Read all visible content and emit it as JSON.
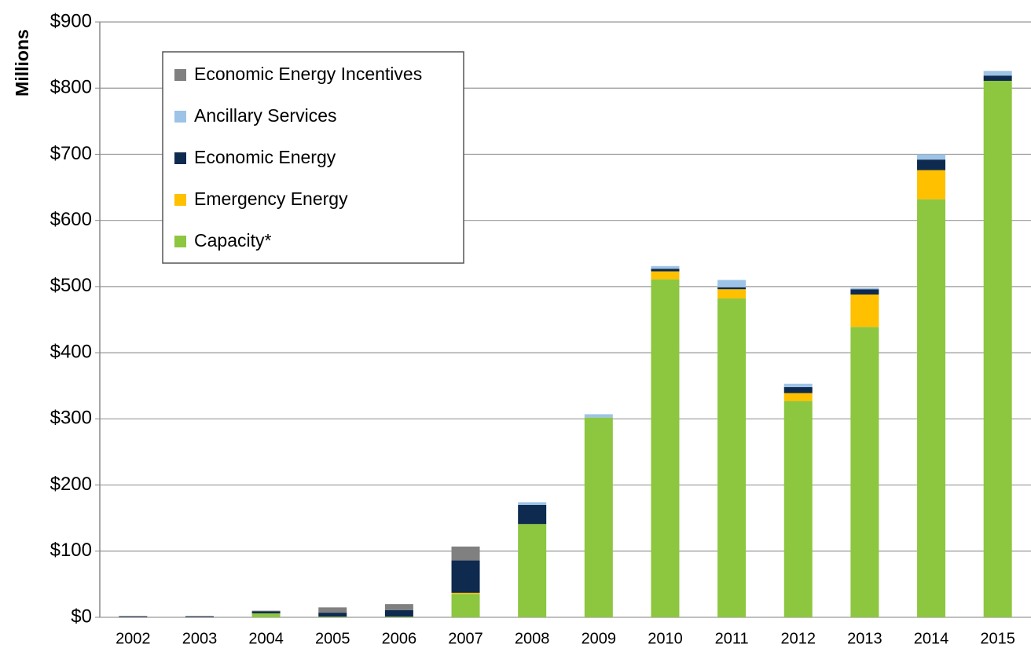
{
  "chart_data": {
    "type": "stacked_bar",
    "y_label": "Millions",
    "categories": [
      "2002",
      "2003",
      "2004",
      "2005",
      "2006",
      "2007",
      "2008",
      "2009",
      "2010",
      "2011",
      "2012",
      "2013",
      "2014",
      "2015"
    ],
    "series": [
      {
        "name": "Capacity*",
        "color": "#8dc63f",
        "values": [
          0,
          0,
          6,
          1,
          1,
          35,
          141,
          302,
          511,
          482,
          327,
          439,
          632,
          811
        ]
      },
      {
        "name": "Emergency Energy",
        "color": "#ffc000",
        "values": [
          0,
          0,
          0,
          0,
          0,
          2,
          0,
          0,
          12,
          14,
          12,
          49,
          44,
          0
        ]
      },
      {
        "name": "Economic Energy",
        "color": "#0f2a4f",
        "values": [
          1,
          1,
          3,
          6,
          10,
          49,
          29,
          0,
          4,
          3,
          9,
          8,
          16,
          8
        ]
      },
      {
        "name": "Ancillary Services",
        "color": "#9dc3e6",
        "values": [
          0,
          0,
          0,
          0,
          0,
          0,
          4,
          5,
          4,
          11,
          5,
          2,
          8,
          7
        ]
      },
      {
        "name": "Economic Energy Incentives",
        "color": "#808080",
        "values": [
          1,
          1,
          1,
          8,
          9,
          21,
          0,
          0,
          0,
          0,
          0,
          0,
          0,
          0
        ]
      }
    ],
    "ylim": [
      0,
      900
    ],
    "yticks": [
      {
        "value": 0,
        "label": "$0"
      },
      {
        "value": 100,
        "label": "$100"
      },
      {
        "value": 200,
        "label": "$200"
      },
      {
        "value": 300,
        "label": "$300"
      },
      {
        "value": 400,
        "label": "$400"
      },
      {
        "value": 500,
        "label": "$500"
      },
      {
        "value": 600,
        "label": "$600"
      },
      {
        "value": 700,
        "label": "$700"
      },
      {
        "value": 800,
        "label": "$800"
      },
      {
        "value": 900,
        "label": "$900"
      }
    ],
    "grid": true,
    "legend": "upper left"
  }
}
